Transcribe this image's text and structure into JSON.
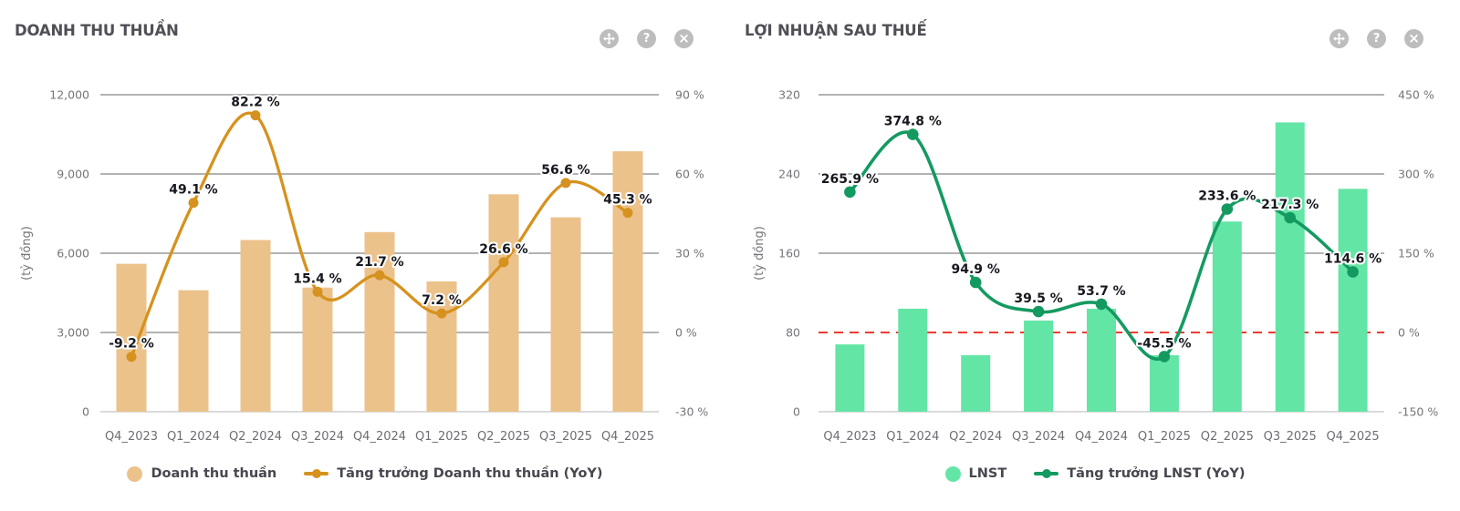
{
  "panel_icons": [
    {
      "name": "move-icon"
    },
    {
      "name": "help-icon",
      "glyph": "?"
    },
    {
      "name": "close-icon",
      "glyph": "×"
    }
  ],
  "chart_data": [
    {
      "type": "combo-bar-line",
      "title": "DOANH THU THUẦN",
      "unit_label": "(tỷ đồng)",
      "categories": [
        "Q4_2023",
        "Q1_2024",
        "Q2_2024",
        "Q3_2024",
        "Q4_2024",
        "Q1_2025",
        "Q2_2025",
        "Q3_2025",
        "Q4_2025"
      ],
      "bar_series": {
        "name": "Doanh thu thuần",
        "axis": "left",
        "color": "#ecc28b",
        "values": [
          5600,
          4600,
          6500,
          4700,
          6800,
          4930,
          8230,
          7360,
          9860
        ]
      },
      "line_series": {
        "name": "Tăng trưởng Doanh thu thuần (YoY)",
        "axis": "right",
        "color": "#d6921f",
        "values": [
          -9.2,
          49.1,
          82.2,
          15.4,
          21.7,
          7.2,
          26.6,
          56.6,
          45.3
        ],
        "labels": [
          "-9.2 %",
          "49.1 %",
          "82.2 %",
          "15.4 %",
          "21.7 %",
          "7.2 %",
          "26.6 %",
          "56.6 %",
          "45.3 %"
        ]
      },
      "y_left": {
        "tick_labels": [
          "12,000",
          "9,000",
          "6,000",
          "3,000",
          "0"
        ],
        "tick_values": [
          12000,
          9000,
          6000,
          3000,
          0
        ],
        "min": 0,
        "max": 12000,
        "grid_values": [
          12000,
          9000,
          6000,
          3000
        ]
      },
      "y_right": {
        "tick_labels": [
          "90 %",
          "60 %",
          "30 %",
          "0 %",
          "-30 %"
        ],
        "tick_values": [
          90,
          60,
          30,
          0,
          -30
        ],
        "min": -30,
        "max": 90
      },
      "grid": true,
      "legend_position": "bottom"
    },
    {
      "type": "combo-bar-line",
      "title": "LỢI NHUẬN SAU THUẾ",
      "unit_label": "(tỷ đồng)",
      "categories": [
        "Q4_2023",
        "Q1_2024",
        "Q2_2024",
        "Q3_2024",
        "Q4_2024",
        "Q1_2025",
        "Q2_2025",
        "Q3_2025",
        "Q4_2025"
      ],
      "bar_series": {
        "name": "LNST",
        "axis": "left",
        "color": "#63e5a6",
        "values": [
          68,
          104,
          57,
          92,
          104,
          57,
          192,
          292,
          225
        ]
      },
      "line_series": {
        "name": "Tăng trưởng LNST (YoY)",
        "axis": "right",
        "color": "#149a60",
        "values": [
          265.9,
          374.8,
          94.9,
          39.5,
          53.7,
          -45.5,
          233.6,
          217.3,
          114.6
        ],
        "labels": [
          "265.9 %",
          "374.8 %",
          "94.9 %",
          "39.5 %",
          "53.7 %",
          "-45.5 %",
          "233.6 %",
          "217.3 %",
          "114.6 %"
        ]
      },
      "y_left": {
        "tick_labels": [
          "320",
          "240",
          "160",
          "80",
          "0"
        ],
        "tick_values": [
          320,
          240,
          160,
          80,
          0
        ],
        "min": 0,
        "max": 320,
        "grid_values": [
          320,
          240,
          160
        ]
      },
      "y_right": {
        "tick_labels": [
          "450 %",
          "300 %",
          "150 %",
          "0 %",
          "-150 %"
        ],
        "tick_values": [
          450,
          300,
          150,
          0,
          -150
        ],
        "min": -150,
        "max": 450
      },
      "zero_growth_line": {
        "style": "dashed",
        "color": "#ee3b30"
      },
      "grid": true,
      "legend_position": "bottom"
    }
  ]
}
